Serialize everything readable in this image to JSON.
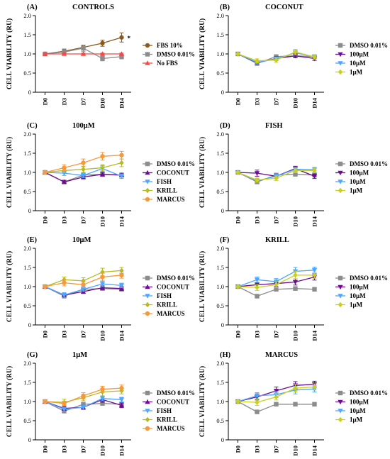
{
  "colors": {
    "DMSO 0.01%": "#8c8c8c",
    "FBS 10%": "#8b5a1e",
    "No FBS": "#f04b4b",
    "COCONUT": "#6a0d91",
    "FISH": "#4da6ff",
    "KRILL": "#b5bd1d",
    "MARCUS": "#f59a3c",
    "100μM": "#6a0d91",
    "10μM": "#4da6ff",
    "1μM": "#c9cf1a"
  },
  "chart_data": [
    {
      "type": "line",
      "letter": "(A)",
      "title": "CONTROLS",
      "ylabel": "CELL VIABILITY (RU)",
      "ylim": [
        0,
        2.0
      ],
      "yticks": [
        "0",
        "0.5",
        "1.0",
        "1.5",
        "2.0"
      ],
      "categories": [
        "D0",
        "D3",
        "D7",
        "D10",
        "D14"
      ],
      "legend": "right",
      "annotation": "*",
      "series": [
        {
          "name": "FBS 10%",
          "marker": "circle",
          "values": [
            1.0,
            1.07,
            1.17,
            1.28,
            1.43
          ],
          "err": [
            0.02,
            0.05,
            0.05,
            0.08,
            0.12
          ]
        },
        {
          "name": "DMSO 0.01%",
          "marker": "square",
          "values": [
            1.0,
            1.05,
            1.15,
            0.88,
            0.93
          ],
          "err": [
            0.02,
            0.08,
            0.08,
            0.06,
            0.06
          ]
        },
        {
          "name": "No FBS",
          "marker": "triangle-up",
          "values": [
            1.0,
            1.0,
            1.0,
            1.0,
            1.0
          ],
          "err": [
            0.02,
            0.02,
            0.02,
            0.02,
            0.02
          ]
        }
      ]
    },
    {
      "type": "line",
      "letter": "(B)",
      "title": "COCONUT",
      "ylabel": "CELL VIABILITY (RU)",
      "ylim": [
        0,
        2.0
      ],
      "yticks": [
        "0",
        "0.5",
        "1.0",
        "1.5",
        "2.0"
      ],
      "categories": [
        "D0",
        "D3",
        "D7",
        "D10",
        "D14"
      ],
      "legend": "right",
      "series": [
        {
          "name": "DMSO 0.01%",
          "marker": "square",
          "values": [
            1.0,
            0.75,
            0.93,
            0.95,
            0.93
          ],
          "err": [
            0.02,
            0.03,
            0.03,
            0.03,
            0.03
          ]
        },
        {
          "name": "100μM",
          "marker": "triangle-down",
          "values": [
            1.0,
            0.77,
            0.88,
            0.95,
            0.88
          ],
          "err": [
            0.02,
            0.04,
            0.05,
            0.05,
            0.05
          ]
        },
        {
          "name": "10μM",
          "marker": "triangle-down",
          "values": [
            1.0,
            0.78,
            0.87,
            1.03,
            0.92
          ],
          "err": [
            0.02,
            0.04,
            0.05,
            0.06,
            0.05
          ]
        },
        {
          "name": "1μM",
          "marker": "diamond",
          "values": [
            1.0,
            0.82,
            0.84,
            1.05,
            0.92
          ],
          "err": [
            0.02,
            0.05,
            0.06,
            0.07,
            0.05
          ]
        }
      ]
    },
    {
      "type": "line",
      "letter": "(C)",
      "title": "100μM",
      "ylabel": "CELL VIABILITY (RU)",
      "ylim": [
        0,
        2.0
      ],
      "yticks": [
        "0",
        "0.5",
        "1.0",
        "1.5",
        "2.0"
      ],
      "categories": [
        "D0",
        "D3",
        "D7",
        "D10",
        "D14"
      ],
      "legend": "right",
      "series": [
        {
          "name": "DMSO 0.01%",
          "marker": "square",
          "values": [
            1.0,
            0.75,
            0.93,
            0.95,
            0.93
          ],
          "err": [
            0.02,
            0.03,
            0.03,
            0.03,
            0.03
          ]
        },
        {
          "name": "COCONUT",
          "marker": "triangle-up",
          "values": [
            1.0,
            0.75,
            0.88,
            0.95,
            0.93
          ],
          "err": [
            0.02,
            0.04,
            0.05,
            0.05,
            0.05
          ]
        },
        {
          "name": "FISH",
          "marker": "triangle-down",
          "values": [
            1.0,
            0.98,
            0.92,
            1.1,
            0.9
          ],
          "err": [
            0.02,
            0.06,
            0.06,
            0.08,
            0.06
          ]
        },
        {
          "name": "KRILL",
          "marker": "diamond",
          "values": [
            1.0,
            1.05,
            1.08,
            1.12,
            1.25
          ],
          "err": [
            0.02,
            0.06,
            0.08,
            0.08,
            0.1
          ]
        },
        {
          "name": "MARCUS",
          "marker": "circle",
          "values": [
            1.0,
            1.12,
            1.25,
            1.42,
            1.45
          ],
          "err": [
            0.02,
            0.08,
            0.1,
            0.1,
            0.1
          ]
        }
      ]
    },
    {
      "type": "line",
      "letter": "(D)",
      "title": "FISH",
      "ylabel": "CELL VIABILITY (RU)",
      "ylim": [
        0,
        2.0
      ],
      "yticks": [
        "0",
        "0.5",
        "1.0",
        "1.5",
        "2.0"
      ],
      "categories": [
        "D0",
        "D3",
        "D7",
        "D10",
        "D14"
      ],
      "legend": "right",
      "series": [
        {
          "name": "DMSO 0.01%",
          "marker": "square",
          "values": [
            1.0,
            0.75,
            0.93,
            0.95,
            0.93
          ],
          "err": [
            0.02,
            0.03,
            0.03,
            0.03,
            0.03
          ]
        },
        {
          "name": "100μM",
          "marker": "triangle-down",
          "values": [
            1.0,
            0.98,
            0.9,
            1.1,
            0.9
          ],
          "err": [
            0.02,
            0.08,
            0.06,
            0.06,
            0.06
          ]
        },
        {
          "name": "10μM",
          "marker": "triangle-down",
          "values": [
            1.0,
            0.78,
            0.9,
            1.08,
            1.07
          ],
          "err": [
            0.02,
            0.05,
            0.06,
            0.05,
            0.06
          ]
        },
        {
          "name": "1μM",
          "marker": "diamond",
          "values": [
            1.0,
            0.8,
            0.85,
            1.05,
            1.05
          ],
          "err": [
            0.02,
            0.05,
            0.06,
            0.06,
            0.06
          ]
        }
      ]
    },
    {
      "type": "line",
      "letter": "(E)",
      "title": "10μM",
      "ylabel": "CELL VIABILITY (RU)",
      "ylim": [
        0,
        2.0
      ],
      "yticks": [
        "0",
        "0.5",
        "1.0",
        "1.5",
        "2.0"
      ],
      "categories": [
        "D0",
        "D3",
        "D7",
        "D10",
        "D14"
      ],
      "legend": "right",
      "series": [
        {
          "name": "DMSO 0.01%",
          "marker": "square",
          "values": [
            1.0,
            0.75,
            0.93,
            0.95,
            0.93
          ],
          "err": [
            0.02,
            0.03,
            0.03,
            0.03,
            0.03
          ]
        },
        {
          "name": "COCONUT",
          "marker": "triangle-up",
          "values": [
            1.0,
            0.78,
            0.87,
            0.97,
            0.95
          ],
          "err": [
            0.02,
            0.04,
            0.05,
            0.05,
            0.05
          ]
        },
        {
          "name": "FISH",
          "marker": "triangle-down",
          "values": [
            1.0,
            0.78,
            0.93,
            1.07,
            1.03
          ],
          "err": [
            0.02,
            0.06,
            0.06,
            0.07,
            0.06
          ]
        },
        {
          "name": "KRILL",
          "marker": "diamond",
          "values": [
            1.0,
            1.18,
            1.15,
            1.38,
            1.42
          ],
          "err": [
            0.02,
            0.07,
            0.08,
            0.1,
            0.08
          ]
        },
        {
          "name": "MARCUS",
          "marker": "circle",
          "values": [
            1.0,
            1.1,
            1.05,
            1.25,
            1.3
          ],
          "err": [
            0.02,
            0.08,
            0.08,
            0.1,
            0.08
          ]
        }
      ]
    },
    {
      "type": "line",
      "letter": "(F)",
      "title": "KRILL",
      "ylabel": "CELL VIABILITY (RU)",
      "ylim": [
        0,
        2.0
      ],
      "yticks": [
        "0",
        "0.5",
        "1.0",
        "1.5",
        "2.0"
      ],
      "categories": [
        "D0",
        "D3",
        "D7",
        "D10",
        "D14"
      ],
      "legend": "right",
      "series": [
        {
          "name": "DMSO 0.01%",
          "marker": "square",
          "values": [
            1.0,
            0.75,
            0.93,
            0.95,
            0.93
          ],
          "err": [
            0.02,
            0.03,
            0.03,
            0.03,
            0.03
          ]
        },
        {
          "name": "100μM",
          "marker": "triangle-down",
          "values": [
            1.0,
            1.05,
            1.08,
            1.12,
            1.25
          ],
          "err": [
            0.02,
            0.06,
            0.08,
            0.08,
            0.08
          ]
        },
        {
          "name": "10μM",
          "marker": "triangle-down",
          "values": [
            1.0,
            1.18,
            1.13,
            1.4,
            1.43
          ],
          "err": [
            0.02,
            0.07,
            0.08,
            0.1,
            0.08
          ]
        },
        {
          "name": "1μM",
          "marker": "diamond",
          "values": [
            1.0,
            0.98,
            1.05,
            1.3,
            1.3
          ],
          "err": [
            0.02,
            0.08,
            0.08,
            0.1,
            0.08
          ]
        }
      ]
    },
    {
      "type": "line",
      "letter": "(G)",
      "title": "1μM",
      "ylabel": "CELL VIABILITY (RU)",
      "ylim": [
        0,
        2.0
      ],
      "yticks": [
        "0",
        "0.5",
        "1.0",
        "1.5",
        "2.0"
      ],
      "categories": [
        "D0",
        "D3",
        "D7",
        "D10",
        "D14"
      ],
      "legend": "right",
      "series": [
        {
          "name": "DMSO 0.01%",
          "marker": "square",
          "values": [
            1.0,
            0.75,
            0.93,
            0.95,
            0.93
          ],
          "err": [
            0.02,
            0.03,
            0.03,
            0.03,
            0.03
          ]
        },
        {
          "name": "COCONUT",
          "marker": "triangle-up",
          "values": [
            1.0,
            0.82,
            0.85,
            1.05,
            0.9
          ],
          "err": [
            0.02,
            0.05,
            0.06,
            0.07,
            0.06
          ]
        },
        {
          "name": "FISH",
          "marker": "triangle-down",
          "values": [
            1.0,
            0.8,
            0.85,
            1.08,
            1.05
          ],
          "err": [
            0.02,
            0.05,
            0.06,
            0.06,
            0.06
          ]
        },
        {
          "name": "KRILL",
          "marker": "diamond",
          "values": [
            1.0,
            0.98,
            1.1,
            1.25,
            1.28
          ],
          "err": [
            0.02,
            0.08,
            0.08,
            0.1,
            0.08
          ]
        },
        {
          "name": "MARCUS",
          "marker": "circle",
          "values": [
            1.0,
            0.95,
            1.15,
            1.32,
            1.35
          ],
          "err": [
            0.02,
            0.06,
            0.08,
            0.08,
            0.08
          ]
        }
      ]
    },
    {
      "type": "line",
      "letter": "(H)",
      "title": "MARCUS",
      "ylabel": "CELL VIABILITY (RU)",
      "ylim": [
        0,
        2.0
      ],
      "yticks": [
        "0",
        "0.5",
        "1.0",
        "1.5",
        "2.0"
      ],
      "categories": [
        "D0",
        "D3",
        "D7",
        "D10",
        "D14"
      ],
      "legend": "right",
      "series": [
        {
          "name": "DMSO 0.01%",
          "marker": "square",
          "values": [
            1.0,
            0.73,
            0.93,
            0.93,
            0.93
          ],
          "err": [
            0.02,
            0.03,
            0.03,
            0.03,
            0.03
          ]
        },
        {
          "name": "100μM",
          "marker": "triangle-down",
          "values": [
            1.0,
            1.12,
            1.28,
            1.42,
            1.45
          ],
          "err": [
            0.02,
            0.08,
            0.1,
            0.1,
            0.08
          ]
        },
        {
          "name": "10μM",
          "marker": "triangle-down",
          "values": [
            1.0,
            1.15,
            1.18,
            1.3,
            1.33
          ],
          "err": [
            0.02,
            0.08,
            0.08,
            0.1,
            0.08
          ]
        },
        {
          "name": "1μM",
          "marker": "diamond",
          "values": [
            1.0,
            0.98,
            1.12,
            1.35,
            1.38
          ],
          "err": [
            0.02,
            0.08,
            0.08,
            0.1,
            0.08
          ]
        }
      ]
    }
  ]
}
